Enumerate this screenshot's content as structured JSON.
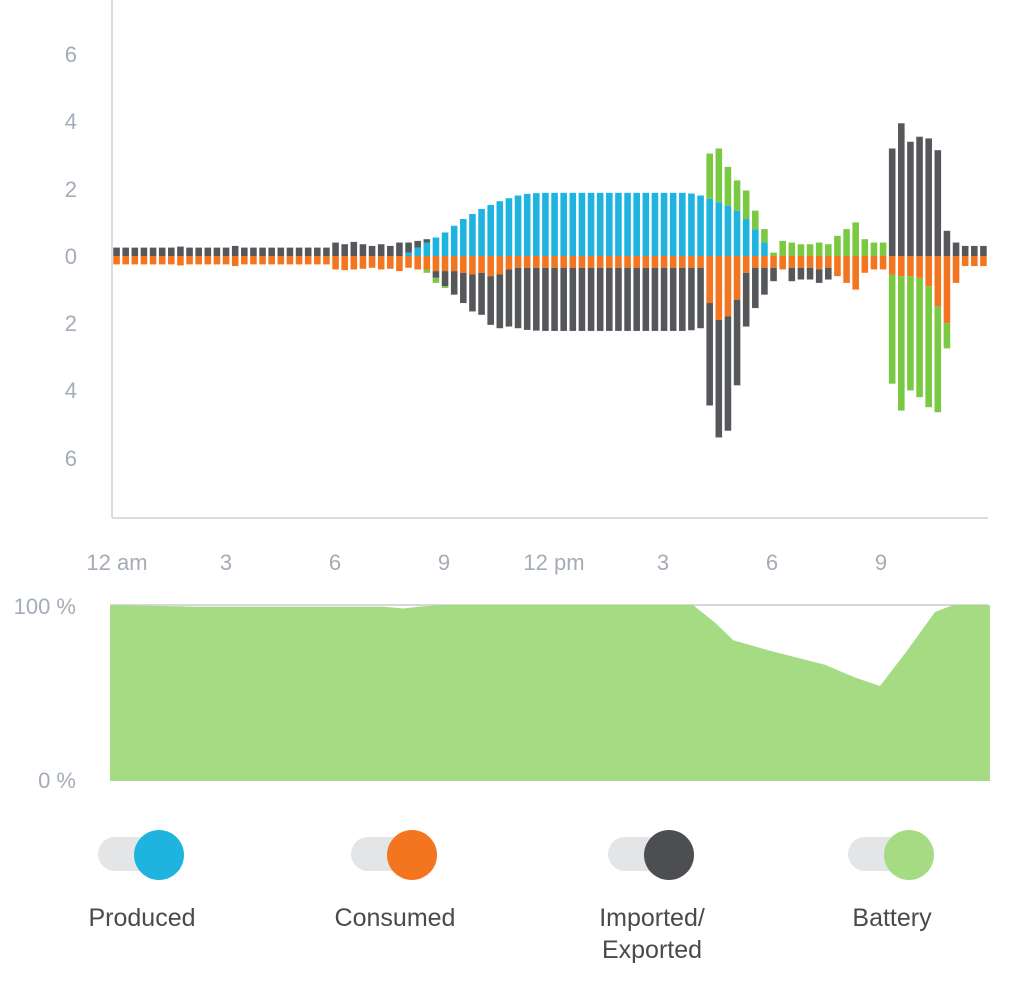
{
  "chart_data": [
    {
      "type": "bar",
      "title": "",
      "x_tick_labels": [
        "12 am",
        "3",
        "6",
        "9",
        "12 pm",
        "3",
        "6",
        "9"
      ],
      "x_tick_hours": [
        0,
        3,
        6,
        9,
        12,
        15,
        18,
        21
      ],
      "x_range_hours": [
        0,
        24
      ],
      "y_tick_labels": [
        "6",
        "4",
        "2",
        "0",
        "2",
        "4",
        "6"
      ],
      "y_tick_values": [
        6,
        4,
        2,
        0,
        -2,
        -4,
        -6
      ],
      "ylim": [
        -7.6,
        7.6
      ],
      "grid": false,
      "interval_minutes": 15,
      "series": [
        {
          "name": "Produced",
          "color": "#1fb4e0",
          "direction": "up",
          "values": [
            0,
            0,
            0,
            0,
            0,
            0,
            0,
            0,
            0,
            0,
            0,
            0,
            0,
            0,
            0,
            0,
            0,
            0,
            0,
            0,
            0,
            0,
            0,
            0,
            0,
            0,
            0,
            0,
            0,
            0,
            0,
            0,
            0.1,
            0.25,
            0.4,
            0.55,
            0.7,
            0.9,
            1.1,
            1.25,
            1.4,
            1.52,
            1.63,
            1.72,
            1.8,
            1.85,
            1.87,
            1.88,
            1.88,
            1.88,
            1.88,
            1.88,
            1.88,
            1.88,
            1.88,
            1.88,
            1.88,
            1.88,
            1.88,
            1.88,
            1.88,
            1.88,
            1.88,
            1.86,
            1.8,
            1.7,
            1.6,
            1.5,
            1.35,
            1.1,
            0.8,
            0.4,
            0,
            0,
            0,
            0,
            0,
            0,
            0,
            0,
            0,
            0,
            0,
            0,
            0,
            0,
            0,
            0,
            0,
            0,
            0,
            0,
            0,
            0,
            0,
            0
          ]
        },
        {
          "name": "Consumed",
          "color": "#f47520",
          "direction": "down",
          "values": [
            0.25,
            0.25,
            0.25,
            0.25,
            0.25,
            0.25,
            0.25,
            0.28,
            0.25,
            0.25,
            0.25,
            0.25,
            0.25,
            0.3,
            0.25,
            0.25,
            0.25,
            0.25,
            0.25,
            0.25,
            0.25,
            0.25,
            0.25,
            0.25,
            0.4,
            0.42,
            0.4,
            0.38,
            0.35,
            0.4,
            0.38,
            0.45,
            0.35,
            0.4,
            0.4,
            0.45,
            0.45,
            0.45,
            0.5,
            0.55,
            0.5,
            0.6,
            0.55,
            0.4,
            0.35,
            0.35,
            0.35,
            0.35,
            0.35,
            0.35,
            0.35,
            0.35,
            0.35,
            0.35,
            0.35,
            0.35,
            0.35,
            0.35,
            0.35,
            0.35,
            0.35,
            0.35,
            0.35,
            0.35,
            0.35,
            1.4,
            1.9,
            1.8,
            1.3,
            0.5,
            0.35,
            0.35,
            0.35,
            0.4,
            0.35,
            0.35,
            0.35,
            0.4,
            0.35,
            0.6,
            0.8,
            1.0,
            0.5,
            0.4,
            0.4,
            0.55,
            0.6,
            0.6,
            0.65,
            0.9,
            1.5,
            2.0,
            0.8,
            0.3,
            0.3,
            0.3
          ]
        },
        {
          "name": "Imported/ Exported",
          "color": "#55575b",
          "direction": "both",
          "values": [
            0.25,
            0.25,
            0.25,
            0.25,
            0.25,
            0.25,
            0.25,
            0.28,
            0.25,
            0.25,
            0.25,
            0.25,
            0.25,
            0.3,
            0.25,
            0.25,
            0.25,
            0.25,
            0.25,
            0.25,
            0.25,
            0.25,
            0.25,
            0.25,
            0.4,
            0.35,
            0.42,
            0.35,
            0.3,
            0.35,
            0.3,
            0.4,
            0.3,
            0.2,
            0.1,
            -0.2,
            -0.45,
            -0.7,
            -0.9,
            -1.1,
            -1.25,
            -1.45,
            -1.6,
            -1.7,
            -1.8,
            -1.85,
            -1.87,
            -1.88,
            -1.88,
            -1.88,
            -1.88,
            -1.88,
            -1.88,
            -1.88,
            -1.88,
            -1.88,
            -1.88,
            -1.88,
            -1.88,
            -1.88,
            -1.88,
            -1.88,
            -1.88,
            -1.86,
            -1.8,
            -3.05,
            -3.5,
            -3.4,
            -2.55,
            -1.6,
            -1.2,
            -0.8,
            -0.4,
            0,
            -0.4,
            -0.35,
            -0.35,
            -0.4,
            -0.35,
            0,
            0,
            0,
            0,
            0,
            0,
            3.2,
            3.95,
            3.4,
            3.55,
            3.5,
            3.15,
            0.75,
            0.4,
            0.3,
            0.3,
            0.3
          ]
        },
        {
          "name": "Battery",
          "color": "#7ac943",
          "direction": "both",
          "values": [
            0,
            0,
            0,
            0,
            0,
            0,
            0,
            0,
            0,
            0,
            0,
            0,
            0,
            0,
            0,
            0,
            0,
            0,
            0,
            0,
            0,
            0,
            0,
            0,
            0,
            0,
            0,
            0,
            0,
            0,
            0,
            0,
            0,
            0,
            -0.1,
            -0.15,
            -0.05,
            0,
            0,
            0,
            0,
            0,
            0,
            0,
            0,
            0,
            0,
            0,
            0,
            0,
            0,
            0,
            0,
            0,
            0,
            0,
            0,
            0,
            0,
            0,
            0,
            0,
            0,
            0,
            0,
            1.35,
            1.6,
            1.15,
            0.9,
            0.85,
            0.55,
            0.4,
            0.1,
            0.45,
            0.4,
            0.35,
            0.35,
            0.4,
            0.35,
            0.6,
            0.8,
            1.0,
            0.5,
            0.4,
            0.4,
            -3.25,
            -4.0,
            -3.4,
            -3.55,
            -3.6,
            -3.15,
            -0.75,
            0,
            0,
            0,
            0
          ]
        }
      ]
    },
    {
      "type": "area",
      "title": "",
      "y_tick_labels": [
        "100 %",
        "0 %"
      ],
      "ylim": [
        0,
        100
      ],
      "x_range_hours": [
        0,
        24
      ],
      "color": "#a5db82",
      "x": [
        0,
        2.5,
        4,
        6,
        7.5,
        8,
        8.4,
        9,
        12,
        15.9,
        16.5,
        17,
        18,
        19.5,
        20.3,
        21,
        21.7,
        22.5,
        23,
        24
      ],
      "values": [
        100,
        99,
        99,
        99,
        99,
        98,
        99,
        100,
        100,
        100,
        90,
        80,
        74,
        66,
        59,
        54,
        73,
        96,
        100,
        100
      ]
    }
  ],
  "legend": {
    "items": [
      {
        "label": "Produced",
        "color": "#1fb4e0"
      },
      {
        "label": "Consumed",
        "color": "#f47520"
      },
      {
        "label": "Imported/",
        "label2": "Exported",
        "color": "#4d4e51"
      },
      {
        "label": "Battery",
        "color": "#a5db82"
      }
    ]
  }
}
